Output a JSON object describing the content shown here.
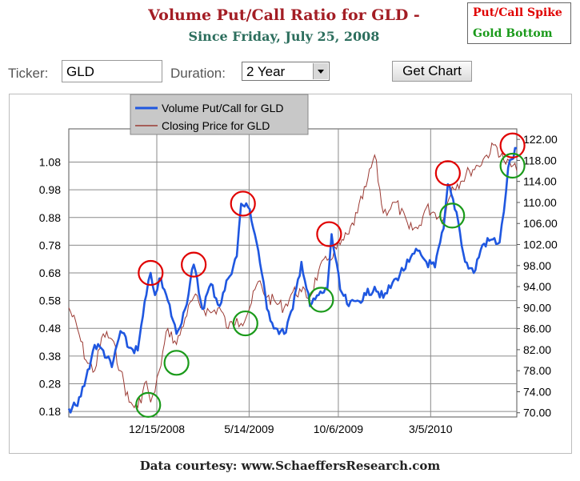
{
  "header": {
    "title": "Volume Put/Call Ratio for GLD -",
    "subtitle": "Since Friday, July 25, 2008"
  },
  "annotation_legend": {
    "spike_label": "Put/Call Spike",
    "bottom_label": "Gold Bottom",
    "spike_color": "#e00000",
    "bottom_color": "#1a9a1a"
  },
  "controls": {
    "ticker_label": "Ticker:",
    "ticker_value": "GLD",
    "duration_label": "Duration:",
    "duration_value": "2 Year",
    "get_chart_label": "Get Chart"
  },
  "footer": {
    "text": "Data courtesy: www.SchaeffersResearch.com"
  },
  "chart_data": {
    "type": "line",
    "x_tick_labels": [
      "12/15/2008",
      "5/14/2009",
      "10/6/2009",
      "3/5/2010"
    ],
    "x_tick_dates": [
      "2008-12-15",
      "2009-05-14",
      "2009-10-06",
      "2010-03-05"
    ],
    "x_range": [
      "2008-07-25",
      "2010-07-23"
    ],
    "y_left": {
      "ticks": [
        "0.18",
        "0.28",
        "0.38",
        "0.48",
        "0.58",
        "0.68",
        "0.78",
        "0.88",
        "0.98",
        "1.08"
      ],
      "range": [
        0.16,
        1.2
      ]
    },
    "y_right": {
      "ticks": [
        "70.00",
        "74.00",
        "78.00",
        "82.00",
        "86.00",
        "90.00",
        "94.00",
        "98.00",
        "102.00",
        "106.00",
        "110.00",
        "114.00",
        "118.00",
        "122.00"
      ],
      "range": [
        69.2,
        124.0
      ]
    },
    "grid": true,
    "legend_position": "top-left",
    "series": [
      {
        "name": "Volume Put/Call for GLD",
        "axis": "left",
        "color": "#1f57e0",
        "points": [
          [
            "2008-07-25",
            0.19
          ],
          [
            "2008-08-08",
            0.2
          ],
          [
            "2008-08-22",
            0.3
          ],
          [
            "2008-09-05",
            0.42
          ],
          [
            "2008-09-19",
            0.4
          ],
          [
            "2008-10-03",
            0.34
          ],
          [
            "2008-10-17",
            0.47
          ],
          [
            "2008-10-31",
            0.41
          ],
          [
            "2008-11-14",
            0.4
          ],
          [
            "2008-11-28",
            0.6
          ],
          [
            "2008-12-05",
            0.68
          ],
          [
            "2008-12-12",
            0.6
          ],
          [
            "2008-12-19",
            0.66
          ],
          [
            "2009-01-02",
            0.58
          ],
          [
            "2009-01-16",
            0.46
          ],
          [
            "2009-01-30",
            0.55
          ],
          [
            "2009-02-13",
            0.71
          ],
          [
            "2009-02-27",
            0.55
          ],
          [
            "2009-03-13",
            0.64
          ],
          [
            "2009-03-27",
            0.56
          ],
          [
            "2009-04-10",
            0.66
          ],
          [
            "2009-04-24",
            0.74
          ],
          [
            "2009-05-01",
            0.93
          ],
          [
            "2009-05-15",
            0.91
          ],
          [
            "2009-05-29",
            0.76
          ],
          [
            "2009-06-12",
            0.55
          ],
          [
            "2009-06-26",
            0.48
          ],
          [
            "2009-07-10",
            0.46
          ],
          [
            "2009-07-24",
            0.55
          ],
          [
            "2009-08-07",
            0.72
          ],
          [
            "2009-08-21",
            0.56
          ],
          [
            "2009-09-04",
            0.6
          ],
          [
            "2009-09-18",
            0.62
          ],
          [
            "2009-09-25",
            0.82
          ],
          [
            "2009-10-09",
            0.62
          ],
          [
            "2009-10-23",
            0.56
          ],
          [
            "2009-11-06",
            0.58
          ],
          [
            "2009-11-20",
            0.6
          ],
          [
            "2009-12-04",
            0.63
          ],
          [
            "2009-12-18",
            0.59
          ],
          [
            "2010-01-08",
            0.66
          ],
          [
            "2010-01-29",
            0.72
          ],
          [
            "2010-02-12",
            0.76
          ],
          [
            "2010-02-26",
            0.72
          ],
          [
            "2010-03-12",
            0.7
          ],
          [
            "2010-03-26",
            0.84
          ],
          [
            "2010-04-02",
            1.0
          ],
          [
            "2010-04-16",
            0.9
          ],
          [
            "2010-04-30",
            0.72
          ],
          [
            "2010-05-14",
            0.68
          ],
          [
            "2010-05-28",
            0.78
          ],
          [
            "2010-06-11",
            0.8
          ],
          [
            "2010-06-25",
            0.79
          ],
          [
            "2010-07-02",
            0.9
          ],
          [
            "2010-07-09",
            1.06
          ],
          [
            "2010-07-23",
            1.13
          ]
        ]
      },
      {
        "name": "Closing Price for GLD",
        "axis": "right",
        "color": "#9b3a33",
        "points": [
          [
            "2008-07-25",
            90
          ],
          [
            "2008-08-08",
            86
          ],
          [
            "2008-08-22",
            80
          ],
          [
            "2008-09-05",
            78
          ],
          [
            "2008-09-19",
            85
          ],
          [
            "2008-10-03",
            84
          ],
          [
            "2008-10-17",
            78
          ],
          [
            "2008-10-31",
            72
          ],
          [
            "2008-11-14",
            71
          ],
          [
            "2008-11-28",
            76
          ],
          [
            "2008-12-05",
            72
          ],
          [
            "2008-12-12",
            74
          ],
          [
            "2008-12-19",
            78
          ],
          [
            "2009-01-02",
            86
          ],
          [
            "2009-01-16",
            83
          ],
          [
            "2009-01-30",
            88
          ],
          [
            "2009-02-13",
            92
          ],
          [
            "2009-02-27",
            90
          ],
          [
            "2009-03-13",
            89
          ],
          [
            "2009-03-27",
            90
          ],
          [
            "2009-04-10",
            86
          ],
          [
            "2009-04-24",
            88
          ],
          [
            "2009-05-01",
            87
          ],
          [
            "2009-05-15",
            90
          ],
          [
            "2009-05-29",
            95
          ],
          [
            "2009-06-12",
            92
          ],
          [
            "2009-06-26",
            91
          ],
          [
            "2009-07-10",
            90
          ],
          [
            "2009-07-24",
            93
          ],
          [
            "2009-08-07",
            93
          ],
          [
            "2009-08-21",
            92
          ],
          [
            "2009-09-04",
            97
          ],
          [
            "2009-09-18",
            99
          ],
          [
            "2009-10-09",
            102
          ],
          [
            "2009-10-23",
            104
          ],
          [
            "2009-11-06",
            108
          ],
          [
            "2009-11-20",
            113
          ],
          [
            "2009-12-04",
            119
          ],
          [
            "2009-12-18",
            108
          ],
          [
            "2010-01-08",
            110
          ],
          [
            "2010-01-29",
            105
          ],
          [
            "2010-02-12",
            105
          ],
          [
            "2010-02-26",
            109
          ],
          [
            "2010-03-12",
            108
          ],
          [
            "2010-03-26",
            107
          ],
          [
            "2010-04-09",
            113
          ],
          [
            "2010-04-23",
            114
          ],
          [
            "2010-05-07",
            116
          ],
          [
            "2010-05-21",
            117
          ],
          [
            "2010-06-04",
            119
          ],
          [
            "2010-06-18",
            121
          ],
          [
            "2010-07-02",
            118
          ],
          [
            "2010-07-23",
            116
          ]
        ]
      }
    ],
    "circles": [
      {
        "kind": "spike",
        "date": "2008-12-05",
        "axis": "left",
        "value": 0.68
      },
      {
        "kind": "spike",
        "date": "2009-02-13",
        "axis": "left",
        "value": 0.71
      },
      {
        "kind": "spike",
        "date": "2009-05-04",
        "axis": "left",
        "value": 0.93
      },
      {
        "kind": "spike",
        "date": "2009-09-21",
        "axis": "left",
        "value": 0.82
      },
      {
        "kind": "spike",
        "date": "2010-04-02",
        "axis": "left",
        "value": 1.04
      },
      {
        "kind": "spike",
        "date": "2010-07-16",
        "axis": "left",
        "value": 1.14
      },
      {
        "kind": "bottom",
        "date": "2008-12-01",
        "axis": "right",
        "value": 71.5
      },
      {
        "kind": "bottom",
        "date": "2009-01-16",
        "axis": "right",
        "value": 79.5
      },
      {
        "kind": "bottom",
        "date": "2009-05-08",
        "axis": "right",
        "value": 87
      },
      {
        "kind": "bottom",
        "date": "2009-09-08",
        "axis": "right",
        "value": 91.5
      },
      {
        "kind": "bottom",
        "date": "2010-04-09",
        "axis": "right",
        "value": 107.5
      },
      {
        "kind": "bottom",
        "date": "2010-07-16",
        "axis": "right",
        "value": 117
      }
    ]
  }
}
